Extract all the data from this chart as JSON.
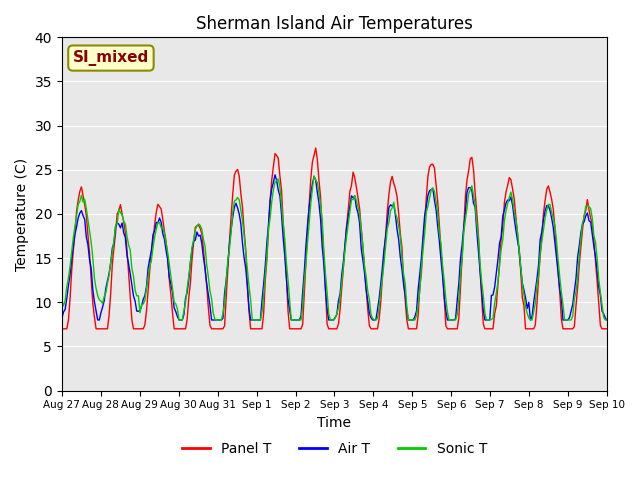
{
  "title": "Sherman Island Air Temperatures",
  "xlabel": "Time",
  "ylabel": "Temperature (C)",
  "ylim": [
    0,
    40
  ],
  "yticks": [
    0,
    5,
    10,
    15,
    20,
    25,
    30,
    35,
    40
  ],
  "annotation_text": "SI_mixed",
  "annotation_color": "#8B0000",
  "annotation_bg": "#FFFFCC",
  "line_colors": {
    "panel": "#FF0000",
    "air": "#0000FF",
    "sonic": "#00CC00"
  },
  "legend_labels": [
    "Panel T",
    "Air T",
    "Sonic T"
  ],
  "bg_color": "#E8E8E8",
  "start_day": 27,
  "num_days": 15,
  "points_per_day": 24
}
